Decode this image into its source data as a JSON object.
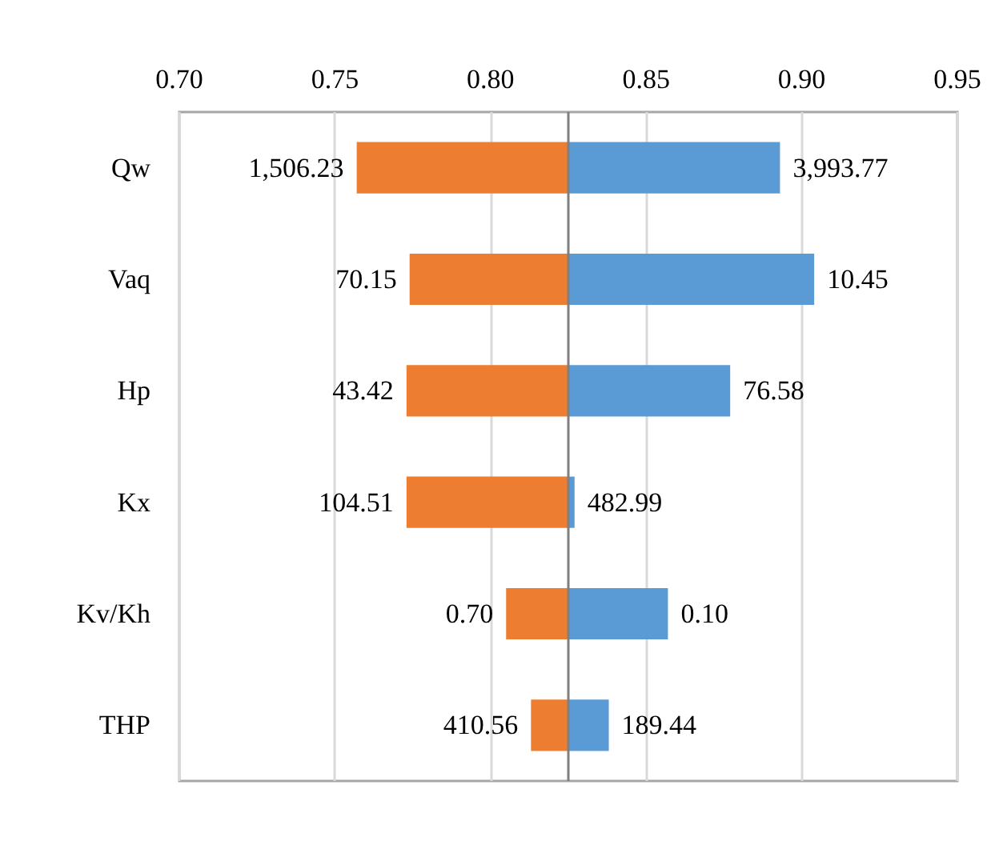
{
  "chart_data": {
    "type": "bar",
    "orientation": "horizontal",
    "categories": [
      "Qw",
      "Vaq",
      "Hp",
      "Kx",
      "Kv/Kh",
      "THP"
    ],
    "series": [
      {
        "color": "#ed7d31",
        "base": [
          0.757,
          0.774,
          0.773,
          0.773,
          0.805,
          0.813
        ],
        "values": [
          0.068,
          0.051,
          0.052,
          0.052,
          0.02,
          0.012
        ]
      },
      {
        "color": "#5b9bd5",
        "base": [
          0.825,
          0.825,
          0.825,
          0.825,
          0.825,
          0.825
        ],
        "values": [
          0.068,
          0.079,
          0.052,
          0.002,
          0.032,
          0.013
        ]
      }
    ],
    "annotations": [
      {
        "text": "1,506.23",
        "x": 0.757,
        "y": "Qw"
      },
      {
        "text": "70.15",
        "x": 0.774,
        "y": "Vaq"
      },
      {
        "text": "43.42",
        "x": 0.773,
        "y": "Hp"
      },
      {
        "text": "104.51",
        "x": 0.773,
        "y": "Kx"
      },
      {
        "text": "0.70",
        "x": 0.805,
        "y": "Kv/Kh"
      },
      {
        "text": "410.56",
        "x": 0.813,
        "y": "THP"
      },
      {
        "text": "3,993.77",
        "x": 0.893,
        "y": "Qw"
      },
      {
        "text": "10.45",
        "x": 0.904,
        "y": "Vaq"
      },
      {
        "text": "76.58",
        "x": 0.877,
        "y": "Hp"
      },
      {
        "text": "482.99",
        "x": 0.827,
        "y": "Kx"
      },
      {
        "text": "0.10",
        "x": 0.857,
        "y": "Kv/Kh"
      },
      {
        "text": "189.44",
        "x": 0.838,
        "y": "THP"
      }
    ],
    "xlim": [
      0.7,
      0.95
    ],
    "xticks": [
      {
        "value": 0.7,
        "label": "0.70"
      },
      {
        "value": 0.75,
        "label": "0.75"
      },
      {
        "value": 0.8,
        "label": "0.80"
      },
      {
        "value": 0.85,
        "label": "0.85"
      },
      {
        "value": 0.9,
        "label": "0.90"
      },
      {
        "value": 0.95,
        "label": "0.95"
      }
    ],
    "ref_lines": [
      {
        "axis": "x",
        "value": 0.825,
        "color": "#7f7f7f"
      }
    ],
    "grid": "x"
  }
}
